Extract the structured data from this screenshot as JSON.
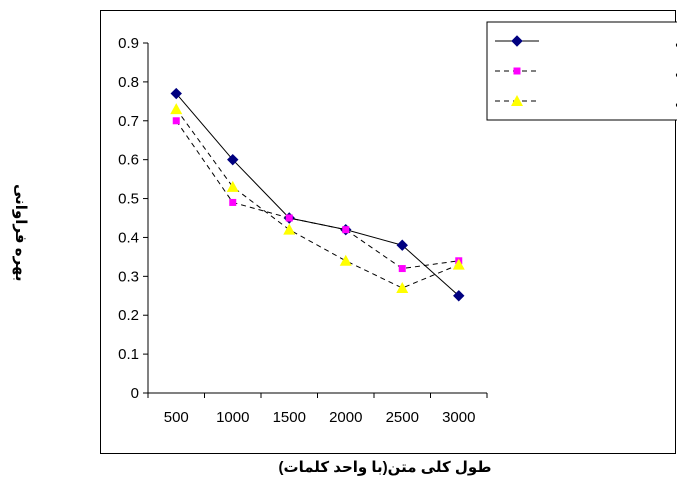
{
  "chart_data": {
    "type": "line",
    "title": "",
    "xlabel": "طول کلی متن(با واحد کلمات)",
    "ylabel": "بهره فراوانی",
    "categories": [
      "500",
      "1000",
      "1500",
      "2000",
      "2500",
      "3000"
    ],
    "ylim": [
      0,
      0.9
    ],
    "yticks": [
      "0",
      "0.1",
      "0.2",
      "0.3",
      "0.4",
      "0.5",
      "0.6",
      "0.7",
      "0.8",
      "0.9"
    ],
    "grid": false,
    "legend_position": "top-right",
    "series": [
      {
        "name": "بن هانی، اندلسی",
        "values": [
          0.77,
          0.6,
          0.45,
          0.42,
          0.38,
          0.25
        ],
        "color": "#000080",
        "marker": "diamond",
        "dash": "solid"
      },
      {
        "name": "متنبّی",
        "values": [
          0.7,
          0.49,
          0.45,
          0.42,
          0.32,
          0.34
        ],
        "color": "#FF00FF",
        "marker": "square",
        "dash": "dashed"
      },
      {
        "name": "احمد شوقی",
        "values": [
          0.73,
          0.53,
          0.42,
          0.34,
          0.27,
          0.33
        ],
        "color": "#FFFF00",
        "marker": "triangle",
        "dash": "dashed"
      }
    ]
  }
}
